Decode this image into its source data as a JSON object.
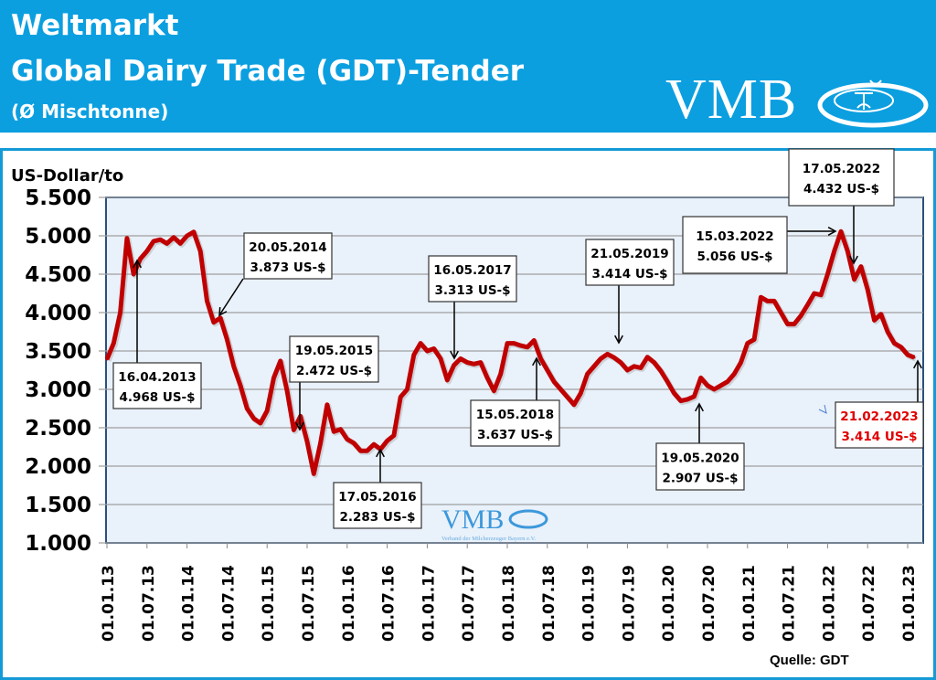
{
  "header": {
    "line1": "Weltmarkt",
    "line2": "Global Dairy Trade (GDT)-Tender",
    "line3": "(Ø Mischtonne)",
    "logo": "VMB",
    "background_color": "#0b9fe0"
  },
  "watermark": {
    "logo": "VMB",
    "subtitle": "Verband der Milcherzeuger Bayern e.V."
  },
  "source": "Quelle: GDT",
  "chart_data": {
    "type": "line",
    "title": "",
    "ylabel": "US-Dollar/to",
    "xlabel": "",
    "ylim": [
      1000,
      5500
    ],
    "yticks": [
      5500,
      5000,
      4500,
      4000,
      3500,
      3000,
      2500,
      2000,
      1500,
      1000
    ],
    "ytick_labels": [
      "5.500",
      "5.000",
      "4.500",
      "4.000",
      "3.500",
      "3.000",
      "2.500",
      "2.000",
      "1.500",
      "1.000"
    ],
    "xlim": [
      "2013-01",
      "2023-05"
    ],
    "xtick_labels": [
      "01.01.13",
      "01.07.13",
      "01.01.14",
      "01.07.14",
      "01.01.15",
      "01.07.15",
      "01.01.16",
      "01.07.16",
      "01.01.17",
      "01.07.17",
      "01.01.18",
      "01.07.18",
      "01.01.19",
      "01.07.19",
      "01.01.20",
      "01.07.20",
      "01.01.21",
      "01.07.21",
      "01.01.22",
      "01.07.22",
      "01.01.23"
    ],
    "grid": true,
    "line_color": "#c00000",
    "plot_background": "#e9f1fa",
    "x": [
      "2013-01",
      "2013-02",
      "2013-03",
      "2013-04",
      "2013-05",
      "2013-06",
      "2013-07",
      "2013-08",
      "2013-09",
      "2013-10",
      "2013-11",
      "2013-12",
      "2014-01",
      "2014-02",
      "2014-03",
      "2014-04",
      "2014-05",
      "2014-06",
      "2014-07",
      "2014-08",
      "2014-09",
      "2014-10",
      "2014-11",
      "2014-12",
      "2015-01",
      "2015-02",
      "2015-03",
      "2015-04",
      "2015-05",
      "2015-06",
      "2015-07",
      "2015-08",
      "2015-09",
      "2015-10",
      "2015-11",
      "2015-12",
      "2016-01",
      "2016-02",
      "2016-03",
      "2016-04",
      "2016-05",
      "2016-06",
      "2016-07",
      "2016-08",
      "2016-09",
      "2016-10",
      "2016-11",
      "2016-12",
      "2017-01",
      "2017-02",
      "2017-03",
      "2017-04",
      "2017-05",
      "2017-06",
      "2017-07",
      "2017-08",
      "2017-09",
      "2017-10",
      "2017-11",
      "2017-12",
      "2018-01",
      "2018-02",
      "2018-03",
      "2018-04",
      "2018-05",
      "2018-06",
      "2018-07",
      "2018-08",
      "2018-09",
      "2018-10",
      "2018-11",
      "2018-12",
      "2019-01",
      "2019-02",
      "2019-03",
      "2019-04",
      "2019-05",
      "2019-06",
      "2019-07",
      "2019-08",
      "2019-09",
      "2019-10",
      "2019-11",
      "2019-12",
      "2020-01",
      "2020-02",
      "2020-03",
      "2020-04",
      "2020-05",
      "2020-06",
      "2020-07",
      "2020-08",
      "2020-09",
      "2020-10",
      "2020-11",
      "2020-12",
      "2021-01",
      "2021-02",
      "2021-03",
      "2021-04",
      "2021-05",
      "2021-06",
      "2021-07",
      "2021-08",
      "2021-09",
      "2021-10",
      "2021-11",
      "2021-12",
      "2022-01",
      "2022-02",
      "2022-03",
      "2022-04",
      "2022-05",
      "2022-06",
      "2022-07",
      "2022-08",
      "2022-09",
      "2022-10",
      "2022-11",
      "2022-12",
      "2023-01",
      "2023-02"
    ],
    "y": [
      3390,
      3600,
      4000,
      4968,
      4500,
      4700,
      4800,
      4930,
      4950,
      4900,
      4980,
      4900,
      5000,
      5050,
      4800,
      4150,
      3873,
      3930,
      3650,
      3300,
      3050,
      2750,
      2620,
      2560,
      2720,
      3150,
      3370,
      2980,
      2472,
      2650,
      2320,
      1900,
      2300,
      2800,
      2450,
      2480,
      2350,
      2300,
      2200,
      2200,
      2283,
      2220,
      2330,
      2400,
      2900,
      3000,
      3450,
      3600,
      3500,
      3530,
      3400,
      3120,
      3313,
      3400,
      3350,
      3330,
      3350,
      3150,
      2980,
      3200,
      3600,
      3600,
      3570,
      3550,
      3637,
      3400,
      3250,
      3100,
      3000,
      2900,
      2800,
      2950,
      3200,
      3300,
      3400,
      3460,
      3414,
      3350,
      3250,
      3300,
      3280,
      3420,
      3350,
      3240,
      3100,
      2950,
      2850,
      2870,
      2907,
      3150,
      3050,
      3000,
      3050,
      3100,
      3200,
      3350,
      3600,
      3650,
      4200,
      4150,
      4150,
      4000,
      3850,
      3850,
      3960,
      4100,
      4250,
      4230,
      4500,
      4800,
      5056,
      4800,
      4432,
      4600,
      4300,
      3900,
      3980,
      3750,
      3600,
      3550,
      3450,
      3414
    ],
    "annotations": [
      {
        "date": "16.04.2013",
        "value": "4.968 US-$",
        "x": "2013-04"
      },
      {
        "date": "20.05.2014",
        "value": "3.873 US-$",
        "x": "2014-05"
      },
      {
        "date": "19.05.2015",
        "value": "2.472 US-$",
        "x": "2015-05"
      },
      {
        "date": "17.05.2016",
        "value": "2.283 US-$",
        "x": "2016-05"
      },
      {
        "date": "16.05.2017",
        "value": "3.313 US-$",
        "x": "2017-05"
      },
      {
        "date": "15.05.2018",
        "value": "3.637 US-$",
        "x": "2018-05"
      },
      {
        "date": "21.05.2019",
        "value": "3.414 US-$",
        "x": "2019-05"
      },
      {
        "date": "19.05.2020",
        "value": "2.907 US-$",
        "x": "2020-05"
      },
      {
        "date": "15.03.2022",
        "value": "5.056 US-$",
        "x": "2022-03"
      },
      {
        "date": "17.05.2022",
        "value": "4.432 US-$",
        "x": "2022-05"
      },
      {
        "date": "21.02.2023",
        "value": "3.414 US-$",
        "x": "2023-02",
        "color": "#e00000"
      }
    ]
  }
}
